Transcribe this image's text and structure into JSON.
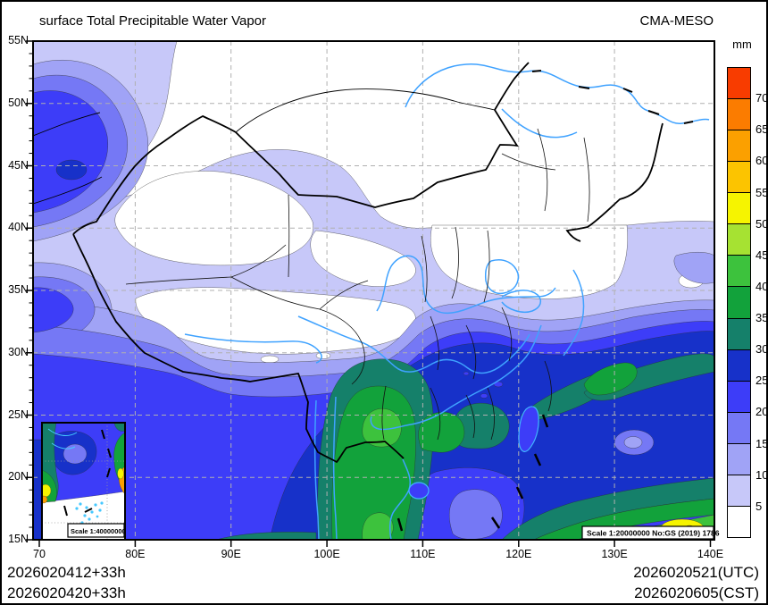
{
  "title": "surface Total Precipitable Water Vapor",
  "model": "CMA-MESO",
  "colorbar": {
    "unit": "mm",
    "levels": [
      70,
      65,
      60,
      55,
      50,
      45,
      40,
      35,
      30,
      25,
      20,
      15,
      10,
      5
    ],
    "colors": [
      "#f83c00",
      "#fb7c00",
      "#fba000",
      "#fcc400",
      "#f6f400",
      "#a6e232",
      "#3dc23d",
      "#12a23b",
      "#15806a",
      "#1731c9",
      "#3d3df8",
      "#7578f5",
      "#a0a3f6",
      "#c7c8f9",
      "#ffffff"
    ]
  },
  "x_axis": {
    "labels": [
      "70",
      "80E",
      "90E",
      "100E",
      "110E",
      "120E",
      "130E",
      "140E"
    ]
  },
  "y_axis": {
    "labels": [
      "55N",
      "50N",
      "45N",
      "40N",
      "35N",
      "30N",
      "25N",
      "20N",
      "15N"
    ]
  },
  "footer": {
    "left_line1": "2026020412+33h",
    "left_line2": "2026020420+33h",
    "right_line1": "2026020521(UTC)",
    "right_line2": "2026020605(CST)"
  },
  "map": {
    "scale_label": "Scale 1:20000000 No:GS (2019) 1786",
    "inset_scale_label": "Scale 1:40000000"
  },
  "chart_data": {
    "type": "heatmap",
    "title": "surface Total Precipitable Water Vapor",
    "unit": "mm",
    "lon_range": [
      70,
      140
    ],
    "lat_range": [
      15,
      55
    ],
    "contour_levels_mm": [
      5,
      10,
      15,
      20,
      25,
      30,
      35,
      40,
      45,
      50,
      55,
      60,
      65,
      70
    ],
    "level_colors_low_to_high": [
      "#ffffff",
      "#c7c8f9",
      "#a0a3f6",
      "#7578f5",
      "#3d3df8",
      "#1731c9",
      "#15806a",
      "#12a23b",
      "#3dc23d",
      "#a6e232",
      "#f6f400",
      "#fcc400",
      "#fba000",
      "#fb7c00",
      "#f83c00"
    ]
  }
}
